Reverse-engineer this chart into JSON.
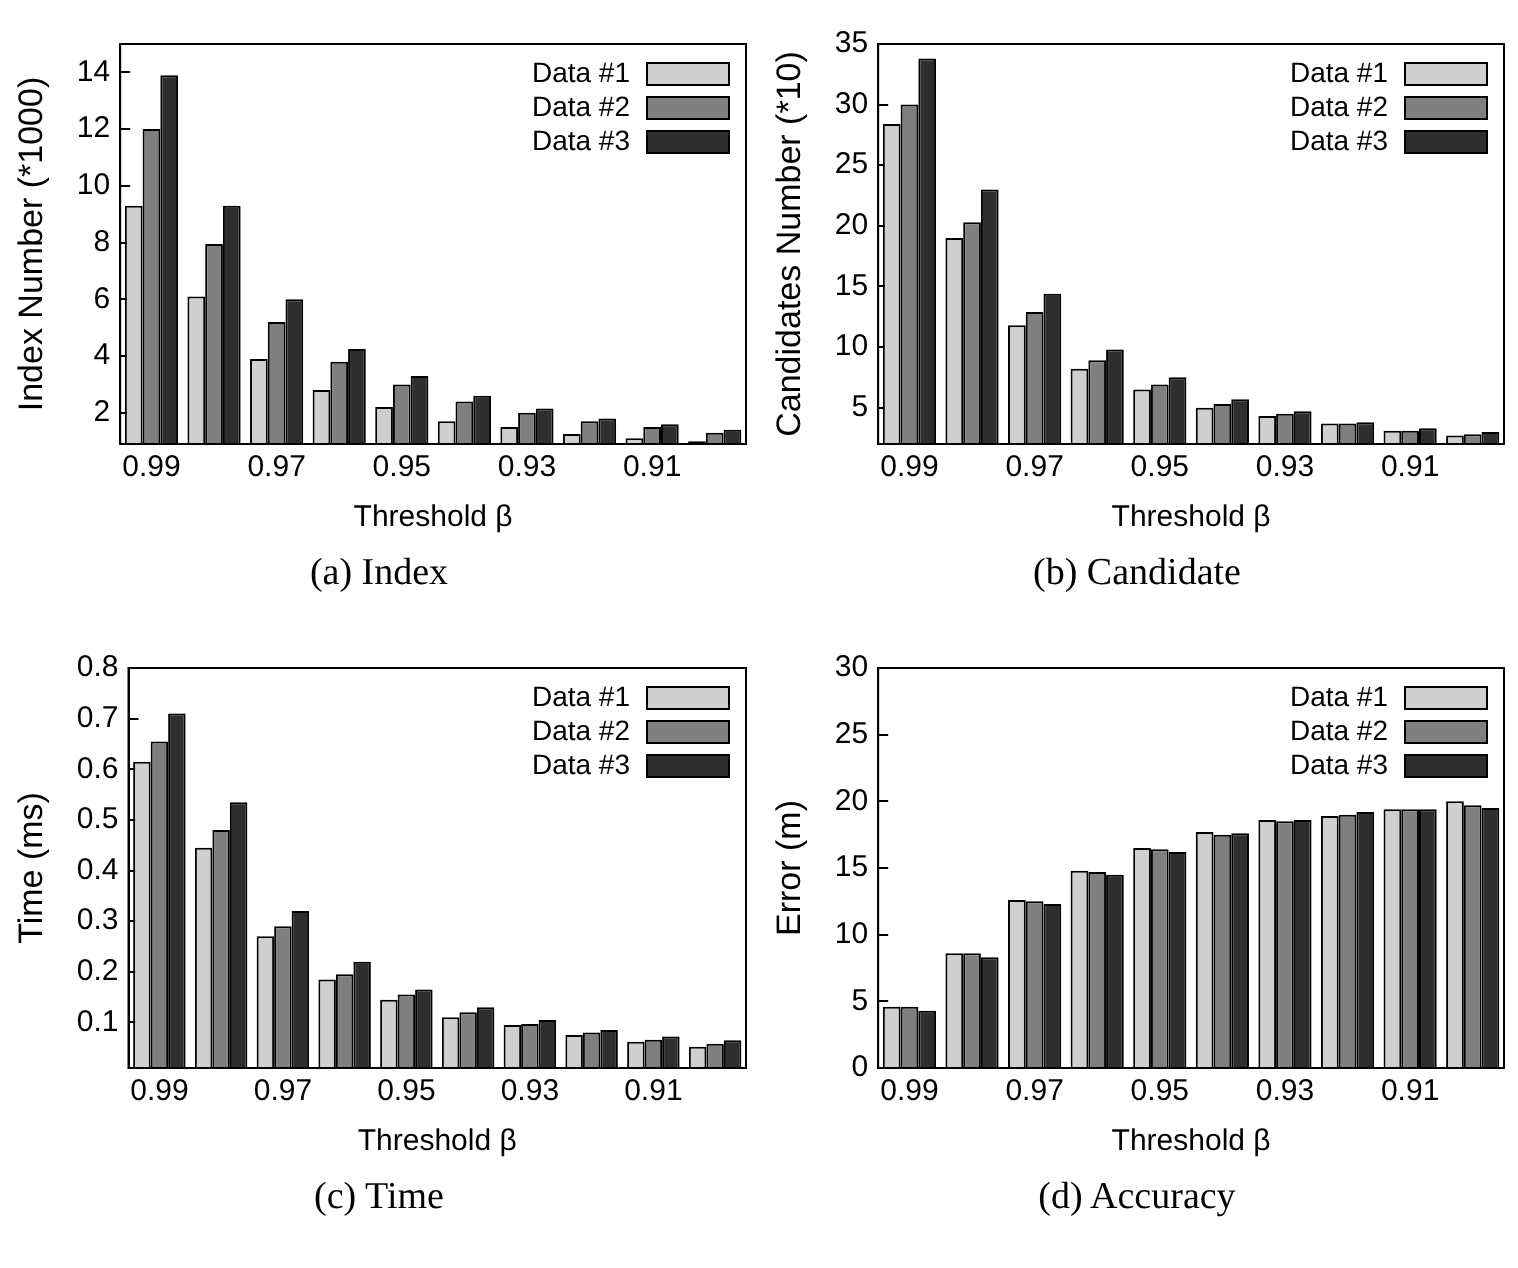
{
  "chart_data": [
    {
      "type": "bar",
      "title": "(a) Index",
      "xlabel": "Threshold β",
      "ylabel": "Index Number (*1000)",
      "categories": [
        "0.99",
        null,
        "0.97",
        null,
        "0.95",
        null,
        "0.93",
        null,
        "0.91",
        null
      ],
      "ylim": [
        0.9,
        15
      ],
      "yticks": [
        2,
        4,
        6,
        8,
        10,
        12,
        14
      ],
      "grid": false,
      "legend": "top right",
      "series": [
        {
          "name": "Data #1",
          "color": "#cfcfcf",
          "values": [
            9.3,
            6.1,
            3.9,
            2.8,
            2.2,
            1.7,
            1.5,
            1.25,
            1.1,
            1.0
          ]
        },
        {
          "name": "Data #2",
          "color": "#7f7f7f",
          "values": [
            12.0,
            7.95,
            5.2,
            3.8,
            3.0,
            2.4,
            2.0,
            1.7,
            1.5,
            1.3
          ]
        },
        {
          "name": "Data #3",
          "color": "#2e2e2e",
          "values": [
            13.9,
            9.3,
            6.0,
            4.25,
            3.3,
            2.6,
            2.15,
            1.8,
            1.6,
            1.4
          ]
        }
      ]
    },
    {
      "type": "bar",
      "title": "(b) Candidate",
      "xlabel": "Threshold β",
      "ylabel": "Candidates Number (*10)",
      "categories": [
        "0.99",
        null,
        "0.97",
        null,
        "0.95",
        null,
        "0.93",
        null,
        "0.91",
        null
      ],
      "ylim": [
        2,
        35
      ],
      "yticks": [
        5,
        10,
        15,
        20,
        25,
        30,
        35
      ],
      "grid": false,
      "legend": "top right",
      "series": [
        {
          "name": "Data #1",
          "color": "#cfcfcf",
          "values": [
            28.4,
            19.0,
            11.8,
            8.2,
            6.5,
            5.0,
            4.3,
            3.7,
            3.1,
            2.7
          ]
        },
        {
          "name": "Data #2",
          "color": "#7f7f7f",
          "values": [
            30.0,
            20.3,
            12.9,
            8.9,
            6.9,
            5.3,
            4.5,
            3.7,
            3.1,
            2.8
          ]
        },
        {
          "name": "Data #3",
          "color": "#2e2e2e",
          "values": [
            33.8,
            23.0,
            14.4,
            9.8,
            7.5,
            5.7,
            4.7,
            3.8,
            3.3,
            3.0
          ]
        }
      ]
    },
    {
      "type": "bar",
      "title": "(c) Time",
      "xlabel": "Threshold β",
      "ylabel": "Time (ms)",
      "categories": [
        "0.99",
        null,
        "0.97",
        null,
        "0.95",
        null,
        "0.93",
        null,
        "0.91",
        null
      ],
      "ylim": [
        0.01,
        0.8
      ],
      "yticks": [
        0.1,
        0.2,
        0.3,
        0.4,
        0.5,
        0.6,
        0.7,
        0.8
      ],
      "grid": false,
      "legend": "top right",
      "series": [
        {
          "name": "Data #1",
          "color": "#cfcfcf",
          "values": [
            0.615,
            0.445,
            0.27,
            0.185,
            0.145,
            0.11,
            0.095,
            0.075,
            0.062,
            0.052
          ]
        },
        {
          "name": "Data #2",
          "color": "#7f7f7f",
          "values": [
            0.655,
            0.48,
            0.29,
            0.195,
            0.155,
            0.12,
            0.097,
            0.08,
            0.066,
            0.058
          ]
        },
        {
          "name": "Data #3",
          "color": "#2e2e2e",
          "values": [
            0.71,
            0.535,
            0.32,
            0.22,
            0.165,
            0.13,
            0.105,
            0.085,
            0.072,
            0.065
          ]
        }
      ]
    },
    {
      "type": "bar",
      "title": "(d) Accuracy",
      "xlabel": "Threshold β",
      "ylabel": "Error (m)",
      "categories": [
        "0.99",
        null,
        "0.97",
        null,
        "0.95",
        null,
        "0.93",
        null,
        "0.91",
        null
      ],
      "ylim": [
        0,
        30
      ],
      "yticks": [
        0,
        5,
        10,
        15,
        20,
        25,
        30
      ],
      "grid": false,
      "legend": "top right",
      "series": [
        {
          "name": "Data #1",
          "color": "#cfcfcf",
          "values": [
            4.6,
            8.6,
            12.6,
            14.8,
            16.5,
            17.7,
            18.6,
            18.9,
            19.4,
            20.0
          ]
        },
        {
          "name": "Data #2",
          "color": "#7f7f7f",
          "values": [
            4.6,
            8.6,
            12.5,
            14.7,
            16.4,
            17.5,
            18.5,
            19.0,
            19.4,
            19.7
          ]
        },
        {
          "name": "Data #3",
          "color": "#2e2e2e",
          "values": [
            4.3,
            8.3,
            12.3,
            14.5,
            16.2,
            17.6,
            18.6,
            19.2,
            19.4,
            19.5
          ]
        }
      ]
    }
  ]
}
